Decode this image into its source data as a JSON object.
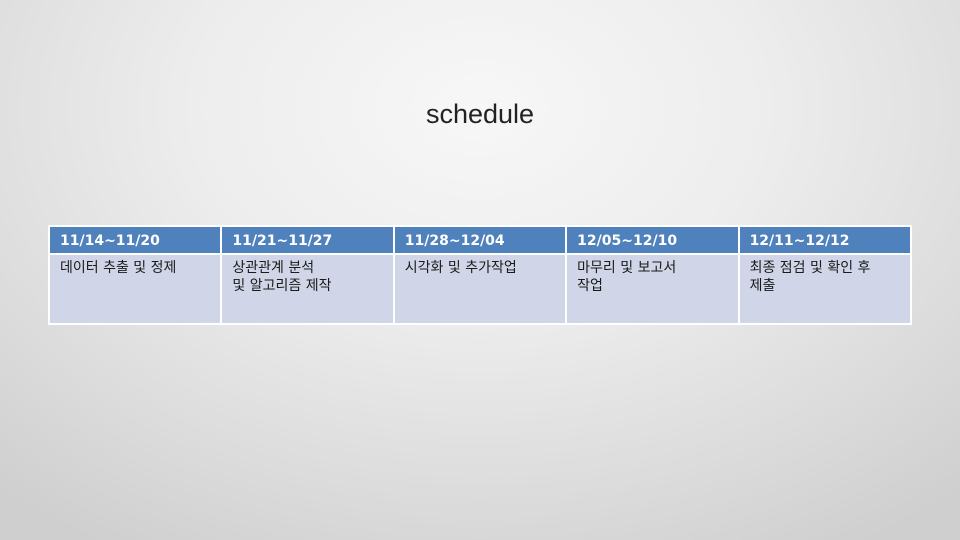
{
  "slide": {
    "title": "schedule"
  },
  "theme": {
    "header_bg": "#4f81bd",
    "cell_bg": "#d0d6e8",
    "header_text": "#ffffff",
    "cell_text": "#1a1a1a"
  },
  "schedule": {
    "columns": [
      {
        "period": "11/14~11/20",
        "task": "데이터 추출 및 정제"
      },
      {
        "period": "11/21~11/27",
        "task": "상관관계 분석\n및 알고리즘 제작"
      },
      {
        "period": "11/28~12/04",
        "task": "시각화 및 추가작업"
      },
      {
        "period": "12/05~12/10",
        "task": "마무리 및 보고서\n작업"
      },
      {
        "period": "12/11~12/12",
        "task": "최종 점검 및 확인 후\n제출"
      }
    ]
  }
}
